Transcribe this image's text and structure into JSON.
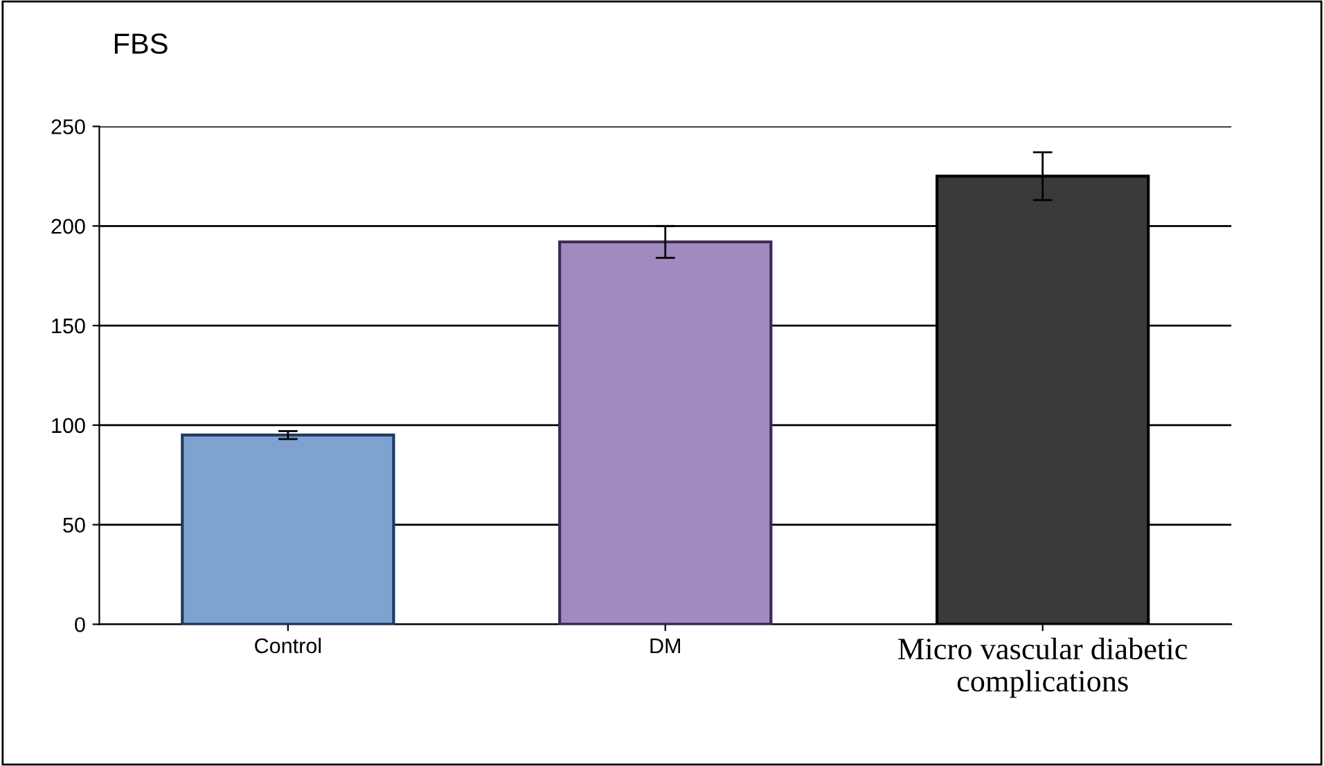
{
  "chart_data": {
    "type": "bar",
    "title": "FBS",
    "categories": [
      "Control",
      "DM",
      "Micro vascular diabetic\ncomplications"
    ],
    "values": [
      95,
      192,
      225
    ],
    "errors": [
      2,
      8,
      12
    ],
    "colors": [
      "#7fa3d0",
      "#a08ac0",
      "#3a3a3a"
    ],
    "ylim": [
      0,
      250
    ],
    "yticks": [
      0,
      50,
      100,
      150,
      200,
      250
    ],
    "grid": "y",
    "legend": false
  }
}
